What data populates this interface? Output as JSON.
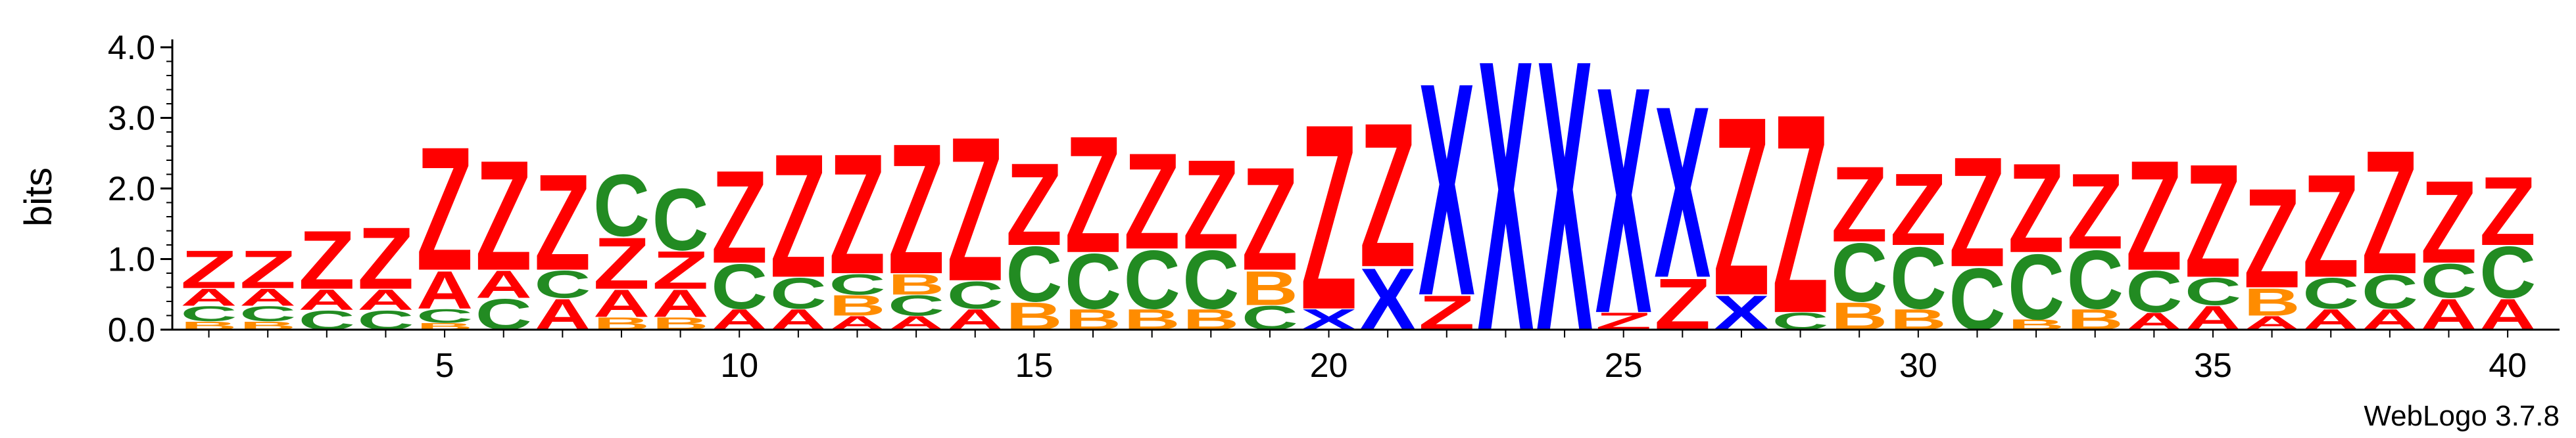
{
  "chart_data": {
    "type": "sequence-logo",
    "ylabel": "bits",
    "ylim": [
      0,
      4
    ],
    "y_ticks": [
      "0.0",
      "1.0",
      "2.0",
      "3.0",
      "4.0"
    ],
    "x_tick_positions": [
      5,
      10,
      15,
      20,
      25,
      30,
      35,
      40
    ],
    "x_tick_labels": [
      "5",
      "10",
      "15",
      "20",
      "25",
      "30",
      "35",
      "40"
    ],
    "footer": "WebLogo 3.7.8",
    "colors": {
      "Z": "#ff0000",
      "X": "#0000ff",
      "C": "#228b22",
      "A": "#ff0000",
      "B": "#ff8c00",
      "other": "#800080"
    },
    "positions": [
      {
        "pos": 1,
        "stack": [
          [
            "B",
            0.12
          ],
          [
            "C",
            0.22
          ],
          [
            "A",
            0.25
          ],
          [
            "Z",
            0.55
          ]
        ]
      },
      {
        "pos": 2,
        "stack": [
          [
            "B",
            0.12
          ],
          [
            "C",
            0.22
          ],
          [
            "A",
            0.25
          ],
          [
            "Z",
            0.55
          ]
        ]
      },
      {
        "pos": 3,
        "stack": [
          [
            "C",
            0.28
          ],
          [
            "A",
            0.3
          ],
          [
            "Z",
            0.85
          ]
        ]
      },
      {
        "pos": 4,
        "stack": [
          [
            "C",
            0.28
          ],
          [
            "A",
            0.3
          ],
          [
            "Z",
            0.9
          ]
        ]
      },
      {
        "pos": 5,
        "stack": [
          [
            "B",
            0.1
          ],
          [
            "C",
            0.2
          ],
          [
            "A",
            0.55
          ],
          [
            "Z",
            1.8
          ]
        ]
      },
      {
        "pos": 6,
        "stack": [
          [
            "C",
            0.45
          ],
          [
            "A",
            0.4
          ],
          [
            "Z",
            1.6
          ]
        ]
      },
      {
        "pos": 7,
        "stack": [
          [
            "A",
            0.45
          ],
          [
            "C",
            0.4
          ],
          [
            "Z",
            1.4
          ]
        ]
      },
      {
        "pos": 8,
        "stack": [
          [
            "B",
            0.18
          ],
          [
            "A",
            0.4
          ],
          [
            "Z",
            0.75
          ],
          [
            "C",
            0.9
          ]
        ]
      },
      {
        "pos": 9,
        "stack": [
          [
            "B",
            0.18
          ],
          [
            "A",
            0.4
          ],
          [
            "Z",
            0.55
          ],
          [
            "C",
            0.9
          ]
        ]
      },
      {
        "pos": 10,
        "stack": [
          [
            "A",
            0.3
          ],
          [
            "C",
            0.65
          ],
          [
            "Z",
            1.35
          ]
        ]
      },
      {
        "pos": 11,
        "stack": [
          [
            "A",
            0.3
          ],
          [
            "C",
            0.45
          ],
          [
            "Z",
            1.8
          ]
        ]
      },
      {
        "pos": 12,
        "stack": [
          [
            "A",
            0.2
          ],
          [
            "B",
            0.3
          ],
          [
            "C",
            0.3
          ],
          [
            "Z",
            1.75
          ]
        ]
      },
      {
        "pos": 13,
        "stack": [
          [
            "A",
            0.2
          ],
          [
            "C",
            0.3
          ],
          [
            "B",
            0.3
          ],
          [
            "Z",
            1.9
          ]
        ]
      },
      {
        "pos": 14,
        "stack": [
          [
            "A",
            0.3
          ],
          [
            "C",
            0.4
          ],
          [
            "Z",
            2.1
          ]
        ]
      },
      {
        "pos": 15,
        "stack": [
          [
            "B",
            0.4
          ],
          [
            "C",
            0.8
          ],
          [
            "Z",
            1.2
          ]
        ]
      },
      {
        "pos": 16,
        "stack": [
          [
            "B",
            0.3
          ],
          [
            "C",
            0.8
          ],
          [
            "Z",
            1.7
          ]
        ]
      },
      {
        "pos": 17,
        "stack": [
          [
            "B",
            0.3
          ],
          [
            "C",
            0.85
          ],
          [
            "Z",
            1.4
          ]
        ]
      },
      {
        "pos": 18,
        "stack": [
          [
            "B",
            0.3
          ],
          [
            "C",
            0.85
          ],
          [
            "Z",
            1.3
          ]
        ]
      },
      {
        "pos": 19,
        "stack": [
          [
            "C",
            0.35
          ],
          [
            "B",
            0.5
          ],
          [
            "Z",
            1.5
          ]
        ]
      },
      {
        "pos": 20,
        "stack": [
          [
            "X",
            0.3
          ],
          [
            "Z",
            2.7
          ]
        ]
      },
      {
        "pos": 21,
        "stack": [
          [
            "X",
            0.9
          ],
          [
            "Z",
            2.1
          ]
        ]
      },
      {
        "pos": 22,
        "stack": [
          [
            "Z",
            0.5
          ],
          [
            "X",
            3.1
          ]
        ]
      },
      {
        "pos": 23,
        "stack": [
          [
            "X",
            3.95
          ]
        ]
      },
      {
        "pos": 24,
        "stack": [
          [
            "X",
            3.95
          ]
        ]
      },
      {
        "pos": 25,
        "stack": [
          [
            "Z",
            0.25
          ],
          [
            "X",
            3.3
          ]
        ]
      },
      {
        "pos": 26,
        "stack": [
          [
            "Z",
            0.75
          ],
          [
            "X",
            2.5
          ]
        ]
      },
      {
        "pos": 27,
        "stack": [
          [
            "X",
            0.5
          ],
          [
            "Z",
            2.6
          ]
        ]
      },
      {
        "pos": 28,
        "stack": [
          [
            "C",
            0.25
          ],
          [
            "Z",
            2.9
          ]
        ]
      },
      {
        "pos": 29,
        "stack": [
          [
            "B",
            0.4
          ],
          [
            "C",
            0.85
          ],
          [
            "Z",
            1.1
          ]
        ]
      },
      {
        "pos": 30,
        "stack": [
          [
            "B",
            0.3
          ],
          [
            "C",
            0.9
          ],
          [
            "Z",
            1.05
          ]
        ]
      },
      {
        "pos": 31,
        "stack": [
          [
            "C",
            0.9
          ],
          [
            "Z",
            1.6
          ]
        ]
      },
      {
        "pos": 32,
        "stack": [
          [
            "B",
            0.15
          ],
          [
            "C",
            0.95
          ],
          [
            "Z",
            1.3
          ]
        ]
      },
      {
        "pos": 33,
        "stack": [
          [
            "B",
            0.3
          ],
          [
            "C",
            0.85
          ],
          [
            "Z",
            1.1
          ]
        ]
      },
      {
        "pos": 34,
        "stack": [
          [
            "A",
            0.25
          ],
          [
            "C",
            0.6
          ],
          [
            "Z",
            1.6
          ]
        ]
      },
      {
        "pos": 35,
        "stack": [
          [
            "A",
            0.35
          ],
          [
            "C",
            0.4
          ],
          [
            "Z",
            1.65
          ]
        ]
      },
      {
        "pos": 36,
        "stack": [
          [
            "A",
            0.2
          ],
          [
            "B",
            0.4
          ],
          [
            "Z",
            1.45
          ]
        ]
      },
      {
        "pos": 37,
        "stack": [
          [
            "A",
            0.3
          ],
          [
            "C",
            0.45
          ],
          [
            "Z",
            1.5
          ]
        ]
      },
      {
        "pos": 38,
        "stack": [
          [
            "A",
            0.3
          ],
          [
            "C",
            0.5
          ],
          [
            "Z",
            1.8
          ]
        ]
      },
      {
        "pos": 39,
        "stack": [
          [
            "A",
            0.45
          ],
          [
            "C",
            0.5
          ],
          [
            "Z",
            1.2
          ]
        ]
      },
      {
        "pos": 40,
        "stack": [
          [
            "A",
            0.45
          ],
          [
            "C",
            0.75
          ],
          [
            "Z",
            1.0
          ]
        ]
      }
    ]
  }
}
